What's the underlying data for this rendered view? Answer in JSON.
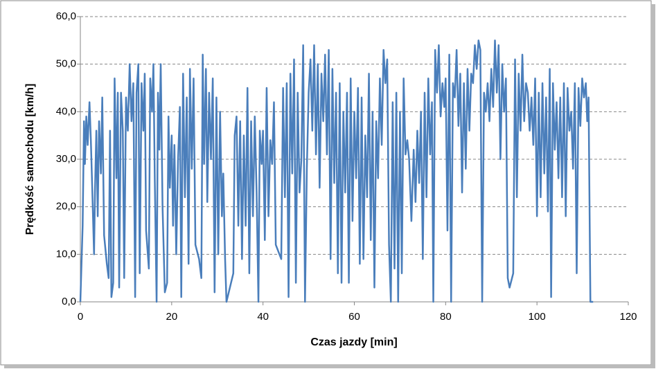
{
  "chart_data": {
    "type": "line",
    "x_label": "Czas jazdy [min]",
    "y_label": "Prędkość samochodu [km/h]",
    "xlim": [
      0,
      120
    ],
    "xticks": [
      0,
      20,
      40,
      60,
      80,
      100,
      120
    ],
    "ylim": [
      0,
      60
    ],
    "yticks": [
      {
        "value": 0,
        "label": "0,0"
      },
      {
        "value": 10,
        "label": "10,0"
      },
      {
        "value": 20,
        "label": "20,0"
      },
      {
        "value": 30,
        "label": "30,0"
      },
      {
        "value": 40,
        "label": "40,0"
      },
      {
        "value": 50,
        "label": "50,0"
      },
      {
        "value": 60,
        "label": "60,0"
      }
    ],
    "grid": true,
    "x": [
      0,
      0.5,
      0.8,
      1.0,
      1.3,
      1.6,
      2.0,
      2.3,
      2.6,
      3.0,
      3.2,
      3.5,
      3.8,
      4.1,
      4.5,
      4.8,
      5.2,
      5.8,
      6.2,
      6.5,
      6.8,
      7.2,
      7.5,
      7.9,
      8.2,
      8.5,
      8.9,
      9.3,
      9.6,
      10.0,
      10.4,
      10.8,
      11.2,
      11.6,
      12.0,
      12.3,
      12.7,
      13.0,
      13.4,
      13.8,
      14.1,
      14.4,
      15.0,
      15.3,
      15.7,
      16.0,
      16.3,
      16.7,
      17.0,
      17.3,
      17.6,
      18.0,
      18.5,
      19.0,
      19.3,
      19.6,
      20.0,
      20.3,
      20.6,
      21.0,
      21.4,
      21.8,
      22.1,
      22.5,
      22.9,
      23.3,
      23.7,
      24.0,
      24.4,
      24.8,
      25.2,
      26.0,
      26.5,
      26.8,
      27.1,
      27.5,
      27.8,
      28.2,
      28.6,
      29.0,
      29.4,
      29.8,
      30.2,
      30.6,
      31.0,
      31.3,
      31.7,
      32.0,
      33.5,
      33.8,
      34.2,
      34.6,
      35.0,
      35.4,
      35.8,
      36.2,
      36.6,
      37.0,
      37.4,
      37.8,
      38.2,
      38.6,
      39.0,
      39.3,
      39.7,
      40.0,
      40.4,
      40.8,
      41.2,
      41.6,
      42.0,
      42.4,
      42.8,
      44.0,
      44.4,
      44.8,
      45.2,
      45.6,
      46.0,
      46.4,
      46.8,
      47.2,
      47.6,
      48.0,
      48.4,
      48.8,
      49.2,
      49.6,
      50.0,
      50.4,
      50.8,
      51.2,
      51.6,
      52.0,
      52.4,
      52.8,
      53.2,
      53.6,
      54.0,
      54.4,
      54.8,
      55.2,
      55.6,
      56.0,
      56.4,
      56.8,
      57.2,
      57.6,
      58.0,
      58.4,
      58.8,
      59.2,
      59.6,
      60.0,
      60.4,
      60.8,
      61.2,
      61.6,
      62.0,
      62.4,
      62.8,
      63.2,
      63.6,
      64.0,
      64.4,
      64.8,
      65.2,
      65.6,
      66.0,
      66.4,
      66.8,
      67.2,
      67.6,
      68.0,
      68.4,
      68.8,
      69.2,
      69.6,
      70.0,
      70.4,
      70.8,
      71.2,
      71.6,
      72.0,
      72.5,
      73.0,
      73.4,
      73.8,
      74.2,
      74.6,
      75.0,
      75.4,
      75.8,
      76.2,
      76.6,
      77.0,
      77.3,
      77.7,
      78.1,
      78.5,
      78.9,
      79.3,
      79.7,
      80.0,
      80.4,
      80.8,
      81.2,
      81.6,
      82.0,
      82.4,
      82.8,
      83.2,
      83.6,
      84.0,
      84.4,
      84.8,
      85.2,
      85.6,
      86.0,
      86.4,
      86.8,
      87.2,
      87.6,
      88.0,
      88.4,
      88.8,
      89.2,
      89.6,
      90.0,
      90.4,
      90.8,
      91.2,
      91.6,
      92.0,
      92.4,
      92.8,
      93.2,
      93.6,
      94.0,
      94.8,
      95.2,
      95.6,
      96.0,
      96.4,
      96.8,
      97.2,
      97.6,
      98.0,
      98.4,
      98.8,
      99.2,
      99.6,
      100.0,
      100.4,
      100.8,
      101.2,
      101.6,
      102.0,
      102.4,
      102.8,
      103.1,
      103.5,
      103.9,
      104.3,
      104.7,
      105.1,
      105.5,
      105.9,
      106.3,
      106.7,
      107.1,
      107.5,
      107.9,
      108.3,
      108.7,
      109.1,
      109.5,
      109.9,
      110.3,
      110.7,
      111.0,
      111.3,
      111.7,
      112.3
    ],
    "series": [
      {
        "color": "#4a7ebb",
        "values": [
          0,
          16,
          38,
          29,
          39,
          33,
          42,
          34,
          24,
          10,
          23,
          36,
          18,
          38,
          27,
          43,
          14,
          8,
          5,
          36,
          1,
          4,
          47,
          26,
          44,
          3,
          44,
          36,
          5,
          43,
          36,
          50,
          38,
          46,
          1,
          44,
          50,
          6,
          46,
          36,
          48,
          15,
          7,
          47,
          40,
          50,
          26,
          0,
          44,
          32,
          50,
          20,
          2,
          4,
          39,
          24,
          35,
          16,
          33,
          10,
          30,
          41,
          1,
          48,
          22,
          43,
          8,
          49,
          28,
          47,
          12,
          9,
          5,
          52,
          29,
          49,
          21,
          44,
          30,
          47,
          2,
          43,
          10,
          40,
          18,
          27,
          9,
          0,
          6,
          35,
          39,
          16,
          38,
          9,
          35,
          16,
          45,
          6,
          38,
          18,
          39,
          23,
          0,
          36,
          29,
          36,
          13,
          45,
          18,
          34,
          29,
          42,
          12,
          9,
          45,
          22,
          46,
          1,
          48,
          27,
          51,
          4,
          44,
          23,
          30,
          54,
          0,
          28,
          44,
          51,
          36,
          54,
          31,
          50,
          24,
          48,
          38,
          52,
          31,
          53,
          9,
          49,
          25,
          44,
          6,
          46,
          4,
          40,
          23,
          44,
          4,
          47,
          17,
          40,
          26,
          45,
          8,
          43,
          9,
          35,
          22,
          48,
          13,
          40,
          3,
          38,
          26,
          47,
          33,
          53,
          46,
          51,
          12,
          0,
          42,
          7,
          44,
          0,
          40,
          6,
          47,
          31,
          34,
          30,
          17,
          32,
          21,
          36,
          25,
          40,
          9,
          44,
          22,
          47,
          31,
          42,
          0,
          53,
          44,
          54,
          39,
          46,
          41,
          47,
          15,
          52,
          0,
          46,
          43,
          53,
          37,
          48,
          23,
          46,
          28,
          49,
          36,
          48,
          46,
          54,
          49,
          55,
          53,
          0,
          44,
          40,
          46,
          38,
          49,
          41,
          55,
          44,
          54,
          30,
          50,
          40,
          47,
          5,
          3,
          6,
          51,
          22,
          48,
          36,
          52,
          38,
          46,
          44,
          36,
          43,
          33,
          47,
          18,
          44,
          22,
          46,
          27,
          43,
          19,
          49,
          1,
          46,
          32,
          42,
          26,
          43,
          22,
          46,
          18,
          45,
          36,
          40,
          28,
          46,
          6,
          45,
          37,
          47,
          43,
          46,
          38,
          43,
          0,
          0
        ]
      }
    ]
  }
}
